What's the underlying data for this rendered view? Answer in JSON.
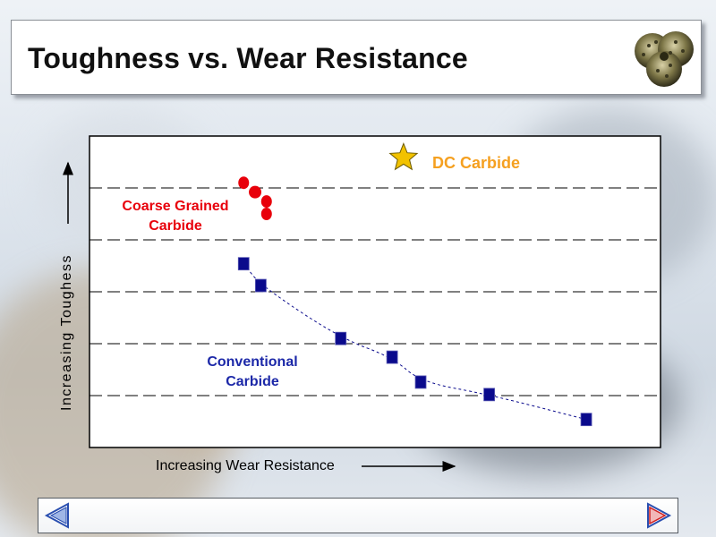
{
  "slide": {
    "title": "Toughness vs. Wear Resistance"
  },
  "icons": {
    "logo": "drill-bit-icon",
    "back": "back-arrow-icon",
    "next": "next-arrow-icon"
  },
  "colors": {
    "coarse": "#e8000b",
    "conventional": "#0a0a8c",
    "dc_carbide": "#f5a020",
    "star": "#f2c200"
  },
  "chart_data": {
    "type": "scatter",
    "title": "",
    "xlabel": "Increasing Wear Resistance",
    "ylabel": "Increasing Toughess",
    "xlim": [
      0,
      100
    ],
    "ylim": [
      0,
      100
    ],
    "grid": "horizontal dashed",
    "tick_labels": "none",
    "series": [
      {
        "name": "Coarse Grained Carbide",
        "marker": "circle",
        "x": [
          27,
          29,
          31,
          31
        ],
        "y": [
          85,
          82,
          79,
          75
        ]
      },
      {
        "name": "Conventional Carbide",
        "marker": "square",
        "trendline": "dashed curve",
        "x": [
          27,
          30,
          44,
          53,
          58,
          70,
          87
        ],
        "y": [
          59,
          52,
          35,
          29,
          21,
          17,
          9
        ]
      },
      {
        "name": "DC Carbide",
        "marker": "star",
        "x": [
          55
        ],
        "y": [
          93
        ]
      }
    ]
  }
}
